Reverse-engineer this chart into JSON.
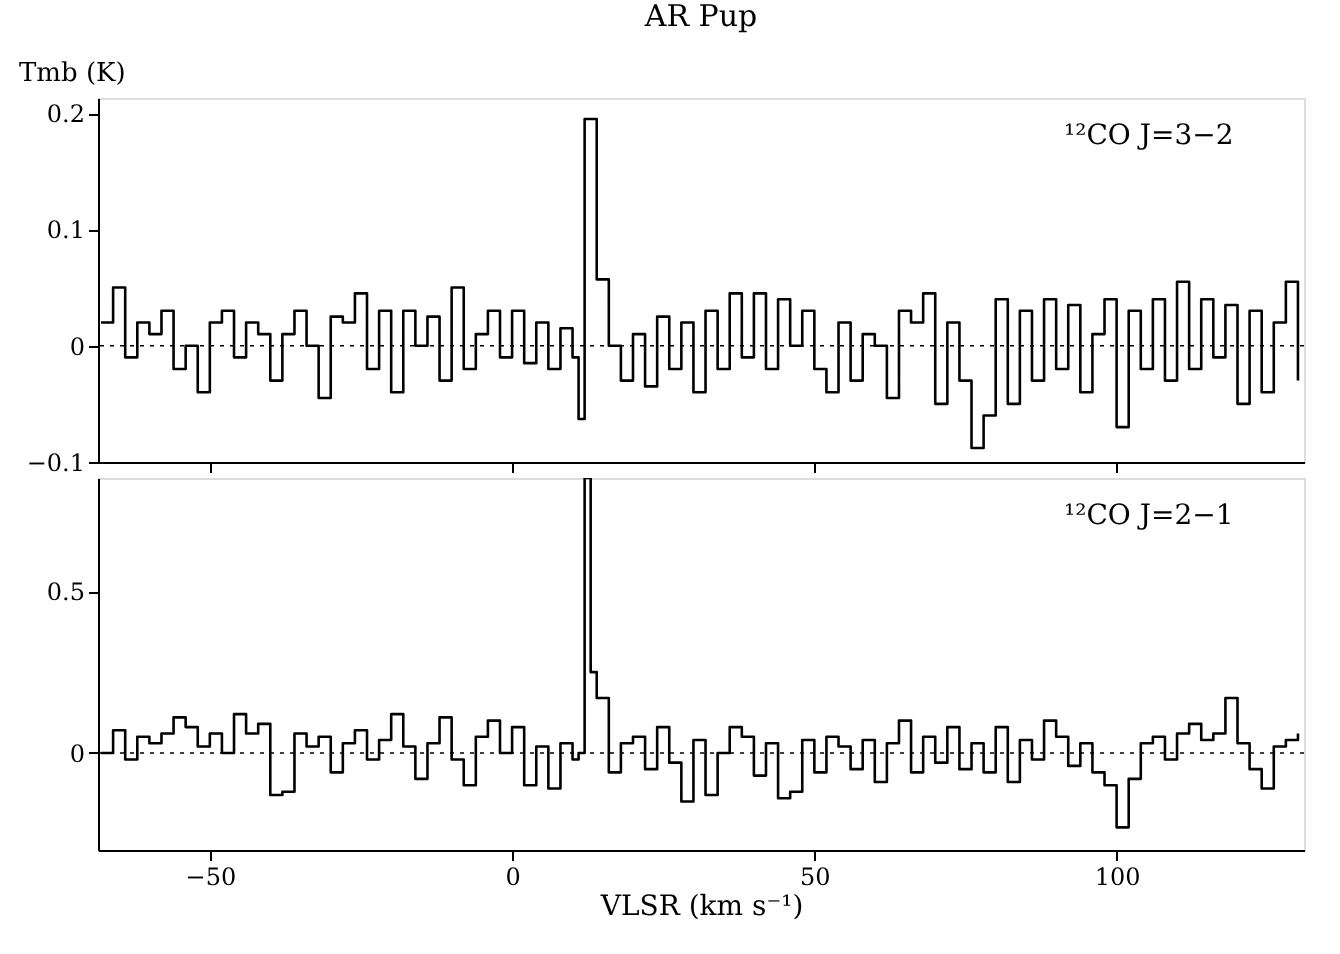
{
  "chart_data": [
    {
      "type": "step",
      "title": "AR Pup",
      "ylabel": "Tmb (K)",
      "annotations": [
        "¹²CO J=3−2"
      ],
      "tick_labels": "y",
      "line_style": "solid",
      "grid": false,
      "xlim": [
        -68.5,
        131
      ],
      "xticks": [
        -50,
        0,
        50,
        100
      ],
      "ylim": [
        -0.1,
        0.213
      ],
      "yticks": [
        {
          "value": -0.1,
          "label": "−0.1"
        },
        {
          "value": 0,
          "label": "0"
        },
        {
          "value": 0.1,
          "label": "0.1"
        },
        {
          "value": 0.2,
          "label": "0.2"
        }
      ],
      "ref_lines": [
        {
          "axis": "y",
          "value": 0,
          "label": null,
          "line_style": "dotted"
        }
      ],
      "x": [
        -68,
        -66,
        -64,
        -62,
        -60,
        -58,
        -56,
        -54,
        -52,
        -50,
        -48,
        -46,
        -44,
        -42,
        -40,
        -38,
        -36,
        -34,
        -32,
        -30,
        -28,
        -26,
        -24,
        -22,
        -20,
        -18,
        -16,
        -14,
        -12,
        -10,
        -8,
        -6,
        -4,
        -2,
        0,
        2,
        4,
        6,
        8,
        10,
        11,
        12,
        13,
        14,
        16,
        18,
        20,
        22,
        24,
        26,
        28,
        30,
        32,
        34,
        36,
        38,
        40,
        42,
        44,
        46,
        48,
        50,
        52,
        54,
        56,
        58,
        60,
        62,
        64,
        66,
        68,
        70,
        72,
        74,
        76,
        78,
        80,
        82,
        84,
        86,
        88,
        90,
        92,
        94,
        96,
        98,
        100,
        102,
        104,
        106,
        108,
        110,
        112,
        114,
        116,
        118,
        120,
        122,
        124,
        126,
        128,
        130
      ],
      "series": [
        {
          "color": "#000000",
          "values": [
            0.02,
            0.05,
            -0.01,
            0.02,
            0.01,
            0.03,
            -0.02,
            0.0,
            -0.04,
            0.02,
            0.03,
            -0.01,
            0.02,
            0.01,
            -0.03,
            0.01,
            0.03,
            0.0,
            -0.045,
            0.025,
            0.02,
            0.045,
            -0.02,
            0.03,
            -0.04,
            0.03,
            0.0,
            0.025,
            -0.03,
            0.05,
            -0.02,
            0.01,
            0.03,
            -0.01,
            0.03,
            -0.015,
            0.02,
            -0.02,
            0.015,
            -0.01,
            -0.063,
            0.195,
            0.195,
            0.057,
            0.0,
            -0.03,
            0.01,
            -0.035,
            0.025,
            -0.02,
            0.02,
            -0.04,
            0.03,
            -0.02,
            0.045,
            -0.01,
            0.045,
            -0.02,
            0.04,
            0.0,
            0.03,
            -0.02,
            -0.04,
            0.02,
            -0.03,
            0.01,
            0.0,
            -0.045,
            0.03,
            0.02,
            0.045,
            -0.05,
            0.02,
            -0.03,
            -0.088,
            -0.06,
            0.04,
            -0.05,
            0.03,
            -0.03,
            0.04,
            -0.02,
            0.035,
            -0.04,
            0.01,
            0.04,
            -0.07,
            0.03,
            -0.02,
            0.04,
            -0.03,
            0.055,
            -0.02,
            0.04,
            -0.01,
            0.035,
            -0.05,
            0.03,
            -0.04,
            0.02,
            0.055,
            -0.03
          ]
        }
      ]
    },
    {
      "type": "step",
      "xlabel": "VLSR (km s⁻¹)",
      "annotations": [
        "¹²CO J=2−1"
      ],
      "line_style": "solid",
      "grid": false,
      "xlim": [
        -68.5,
        131
      ],
      "xticks": [
        {
          "value": -50,
          "label": "−50"
        },
        {
          "value": 0,
          "label": "0"
        },
        {
          "value": 50,
          "label": "50"
        },
        {
          "value": 100,
          "label": "100"
        }
      ],
      "ylim": [
        -0.3,
        0.85
      ],
      "yticks": [
        {
          "value": 0,
          "label": "0"
        },
        {
          "value": 0.5,
          "label": "0.5"
        }
      ],
      "ref_lines": [
        {
          "axis": "y",
          "value": 0,
          "label": null,
          "line_style": "dotted"
        }
      ],
      "x": [
        -68,
        -66,
        -64,
        -62,
        -60,
        -58,
        -56,
        -54,
        -52,
        -50,
        -48,
        -46,
        -44,
        -42,
        -40,
        -38,
        -36,
        -34,
        -32,
        -30,
        -28,
        -26,
        -24,
        -22,
        -20,
        -18,
        -16,
        -14,
        -12,
        -10,
        -8,
        -6,
        -4,
        -2,
        0,
        2,
        4,
        6,
        8,
        10,
        11,
        12,
        13,
        14,
        16,
        18,
        20,
        22,
        24,
        26,
        28,
        30,
        32,
        34,
        36,
        38,
        40,
        42,
        44,
        46,
        48,
        50,
        52,
        54,
        56,
        58,
        60,
        62,
        64,
        66,
        68,
        70,
        72,
        74,
        76,
        78,
        80,
        82,
        84,
        86,
        88,
        90,
        92,
        94,
        96,
        98,
        100,
        102,
        104,
        106,
        108,
        110,
        112,
        114,
        116,
        118,
        120,
        122,
        124,
        126,
        128,
        130
      ],
      "series": [
        {
          "color": "#000000",
          "values": [
            0.0,
            0.07,
            -0.02,
            0.05,
            0.03,
            0.06,
            0.11,
            0.08,
            0.02,
            0.06,
            0.0,
            0.12,
            0.06,
            0.09,
            -0.13,
            -0.12,
            0.06,
            0.02,
            0.05,
            -0.06,
            0.03,
            0.07,
            -0.02,
            0.04,
            0.12,
            0.02,
            -0.08,
            0.03,
            0.11,
            -0.02,
            -0.1,
            0.05,
            0.1,
            0.0,
            0.08,
            -0.1,
            0.02,
            -0.11,
            0.03,
            -0.02,
            0.0,
            0.85,
            0.25,
            0.17,
            -0.06,
            0.03,
            0.05,
            -0.05,
            0.08,
            -0.03,
            -0.15,
            0.04,
            -0.13,
            0.0,
            0.08,
            0.05,
            -0.07,
            0.03,
            -0.14,
            -0.12,
            0.04,
            -0.06,
            0.05,
            0.02,
            -0.05,
            0.04,
            -0.09,
            0.03,
            0.1,
            -0.06,
            0.05,
            -0.03,
            0.08,
            -0.05,
            0.03,
            -0.06,
            0.08,
            -0.09,
            0.04,
            -0.02,
            0.1,
            0.05,
            -0.04,
            0.03,
            -0.06,
            -0.1,
            -0.23,
            -0.08,
            0.03,
            0.05,
            -0.02,
            0.06,
            0.09,
            0.04,
            0.06,
            0.17,
            0.03,
            -0.05,
            -0.11,
            0.02,
            0.04,
            0.06
          ]
        }
      ]
    }
  ]
}
